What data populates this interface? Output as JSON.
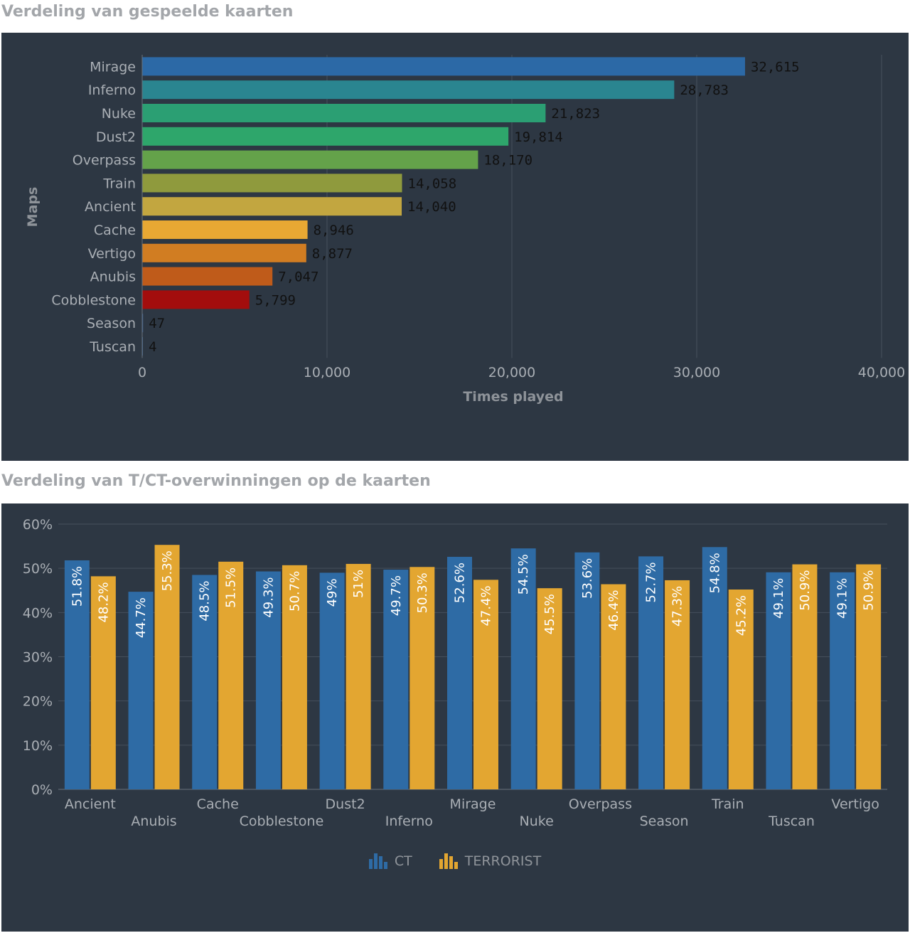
{
  "titles": {
    "maps_played": "Verdeling van gespeelde kaarten",
    "win_split": "Verdeling van T/CT-overwinningen op de kaarten"
  },
  "chart_data": [
    {
      "type": "bar",
      "orientation": "horizontal",
      "categories": [
        "Mirage",
        "Inferno",
        "Nuke",
        "Dust2",
        "Overpass",
        "Train",
        "Ancient",
        "Cache",
        "Vertigo",
        "Anubis",
        "Cobblestone",
        "Season",
        "Tuscan"
      ],
      "values": [
        32615,
        28783,
        21823,
        19814,
        18170,
        14058,
        14040,
        8946,
        8877,
        7047,
        5799,
        47,
        4
      ],
      "value_labels": [
        "32,615",
        "28,783",
        "21,823",
        "19,814",
        "18,170",
        "14,058",
        "14,040",
        "8,946",
        "8,877",
        "7,047",
        "5,799",
        "47",
        "4"
      ],
      "colors": [
        "#2c69a6",
        "#2a8590",
        "#2b9f73",
        "#2ea66b",
        "#64a24a",
        "#8f9a3d",
        "#c2a640",
        "#e8a833",
        "#d17d22",
        "#bf5b1a",
        "#a30d0d",
        "#3b5f8f",
        "#3b5f8f"
      ],
      "xlabel": "Times played",
      "ylabel": "Maps",
      "xlim": [
        0,
        40000
      ],
      "xticks": [
        0,
        10000,
        20000,
        30000,
        40000
      ],
      "xtick_labels": [
        "0",
        "10,000",
        "20,000",
        "30,000",
        "40,000"
      ],
      "grid": true
    },
    {
      "type": "bar",
      "orientation": "vertical",
      "categories": [
        "Ancient",
        "Anubis",
        "Cache",
        "Cobblestone",
        "Dust2",
        "Inferno",
        "Mirage",
        "Nuke",
        "Overpass",
        "Season",
        "Train",
        "Tuscan",
        "Vertigo"
      ],
      "series": [
        {
          "name": "CT",
          "color": "#2e6ba5",
          "values": [
            51.8,
            44.7,
            48.5,
            49.3,
            49,
            49.7,
            52.6,
            54.5,
            53.6,
            52.7,
            54.8,
            49.1,
            49.1
          ],
          "labels": [
            "51.8%",
            "44.7%",
            "48.5%",
            "49.3%",
            "49%",
            "49.7%",
            "52.6%",
            "54.5%",
            "53.6%",
            "52.7%",
            "54.8%",
            "49.1%",
            "49.1%"
          ]
        },
        {
          "name": "TERRORIST",
          "color": "#e3a631",
          "values": [
            48.2,
            55.3,
            51.5,
            50.7,
            51,
            50.3,
            47.4,
            45.5,
            46.4,
            47.3,
            45.2,
            50.9,
            50.9
          ],
          "labels": [
            "48.2%",
            "55.3%",
            "51.5%",
            "50.7%",
            "51%",
            "50.3%",
            "47.4%",
            "45.5%",
            "46.4%",
            "47.3%",
            "45.2%",
            "50.9%",
            "50.9%"
          ]
        }
      ],
      "ylim": [
        0,
        60
      ],
      "yticks": [
        0,
        10,
        20,
        30,
        40,
        50,
        60
      ],
      "ytick_labels": [
        "0%",
        "10%",
        "20%",
        "30%",
        "40%",
        "50%",
        "60%"
      ],
      "legend": "bottom-center",
      "grid": true
    }
  ]
}
